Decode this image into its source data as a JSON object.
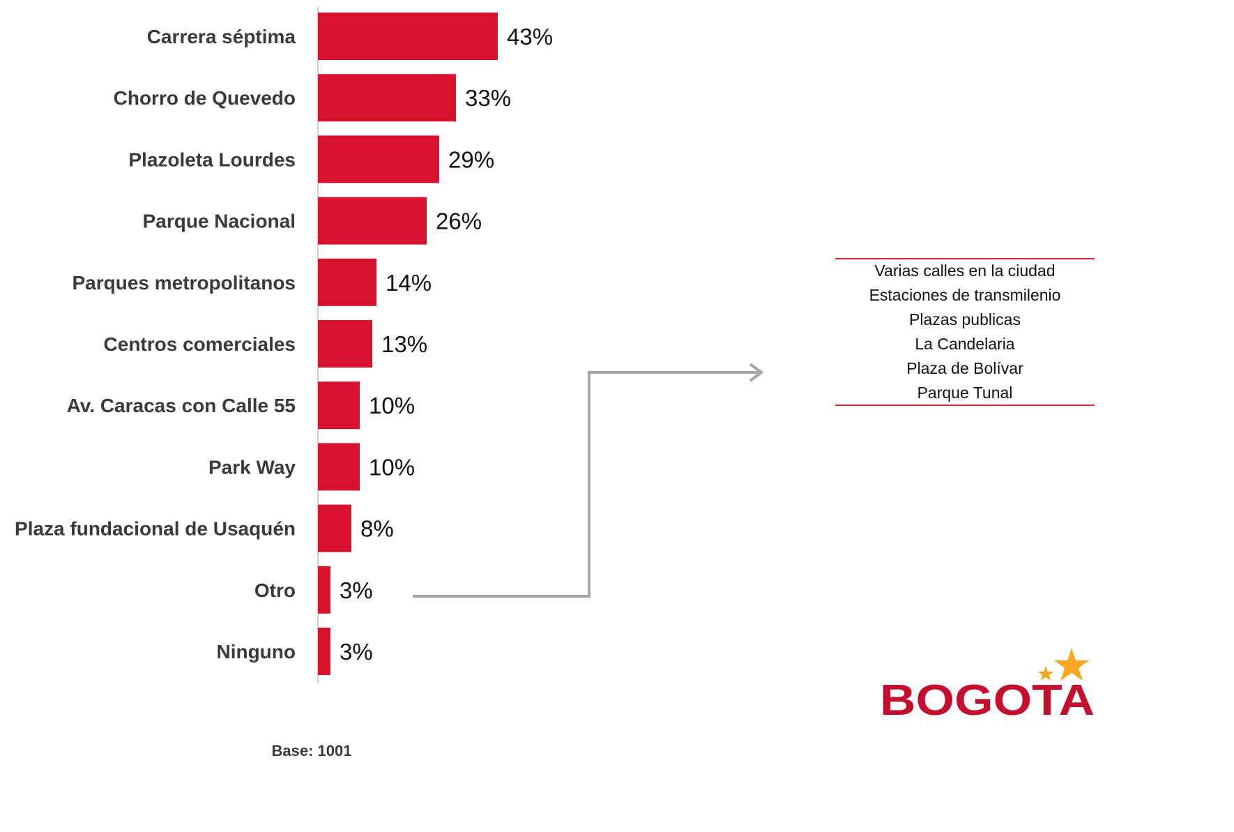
{
  "chart_data": {
    "type": "bar",
    "orientation": "horizontal",
    "categories": [
      "Carrera séptima",
      "Chorro de Quevedo",
      "Plazoleta Lourdes",
      "Parque Nacional",
      "Parques metropolitanos",
      "Centros comerciales",
      "Av. Caracas con Calle 55",
      "Park Way",
      "Plaza fundacional de Usaquén",
      "Otro",
      "Ninguno"
    ],
    "values": [
      43,
      33,
      29,
      26,
      14,
      13,
      10,
      10,
      8,
      3,
      3
    ],
    "value_labels": [
      "43%",
      "33%",
      "29%",
      "26%",
      "14%",
      "13%",
      "10%",
      "10%",
      "8%",
      "3%",
      "3%"
    ],
    "unit": "%",
    "bar_color": "#d7112e",
    "xlim": [
      0,
      45
    ],
    "grid": false,
    "legend": "none",
    "base_note": "Base: 1001",
    "other_breakdown": {
      "source_category": "Otro",
      "items": [
        "Varias calles en la ciudad",
        "Estaciones de transmilenio",
        "Plazas publicas",
        "La Candelaria",
        "Plaza de Bolívar",
        "Parque Tunal"
      ],
      "border_color": "#e0303a",
      "arrow_color": "#a6a6a6"
    }
  },
  "logo": {
    "text": "BOGOTA",
    "text_color": "#c4102e",
    "star_color": "#f7a823"
  }
}
